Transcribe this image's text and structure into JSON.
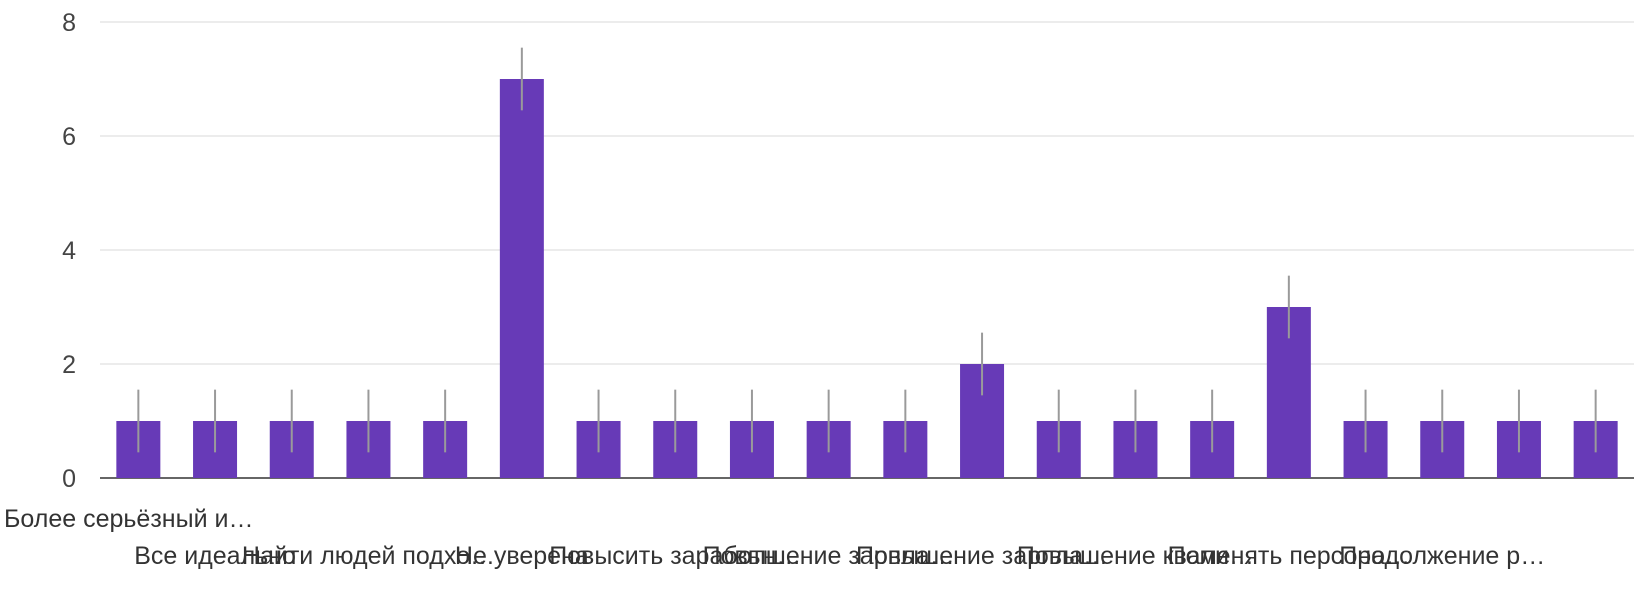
{
  "chart_data": {
    "type": "bar",
    "color": "#673ab7",
    "ylim": [
      0,
      8
    ],
    "yticks": [
      0,
      2,
      4,
      6,
      8
    ],
    "grid": true,
    "error_bar": 0.55,
    "categories": [
      "Более серьёзный и…",
      "Все идеально",
      "",
      "Найти людей подхо…",
      "",
      "Не уверена",
      "",
      "Повысить заработн…",
      "",
      "Повышение зарпла…",
      "",
      "Повышение зарпла…",
      "",
      "Повышение квали…",
      "",
      "Поменять персона…",
      "",
      "Продолжение р…",
      "",
      ""
    ],
    "values": [
      1,
      1,
      1,
      1,
      1,
      7,
      1,
      1,
      1,
      1,
      1,
      2,
      1,
      1,
      1,
      3,
      1,
      1,
      1,
      1
    ]
  }
}
